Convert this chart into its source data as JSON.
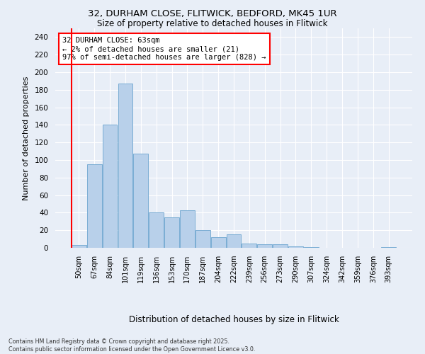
{
  "title_line1": "32, DURHAM CLOSE, FLITWICK, BEDFORD, MK45 1UR",
  "title_line2": "Size of property relative to detached houses in Flitwick",
  "xlabel": "Distribution of detached houses by size in Flitwick",
  "ylabel": "Number of detached properties",
  "categories": [
    "50sqm",
    "67sqm",
    "84sqm",
    "101sqm",
    "119sqm",
    "136sqm",
    "153sqm",
    "170sqm",
    "187sqm",
    "204sqm",
    "222sqm",
    "239sqm",
    "256sqm",
    "273sqm",
    "290sqm",
    "307sqm",
    "324sqm",
    "342sqm",
    "359sqm",
    "376sqm",
    "393sqm"
  ],
  "values": [
    3,
    95,
    140,
    187,
    107,
    40,
    35,
    43,
    20,
    12,
    15,
    5,
    4,
    4,
    2,
    1,
    0,
    0,
    0,
    0,
    1
  ],
  "bar_color": "#b8d0ea",
  "bar_edge_color": "#7aadd4",
  "annotation_text": "32 DURHAM CLOSE: 63sqm\n← 2% of detached houses are smaller (21)\n97% of semi-detached houses are larger (828) →",
  "ylim": [
    0,
    250
  ],
  "yticks": [
    0,
    20,
    40,
    60,
    80,
    100,
    120,
    140,
    160,
    180,
    200,
    220,
    240
  ],
  "background_color": "#e8eef7",
  "grid_color": "white",
  "footnote": "Contains HM Land Registry data © Crown copyright and database right 2025.\nContains public sector information licensed under the Open Government Licence v3.0."
}
